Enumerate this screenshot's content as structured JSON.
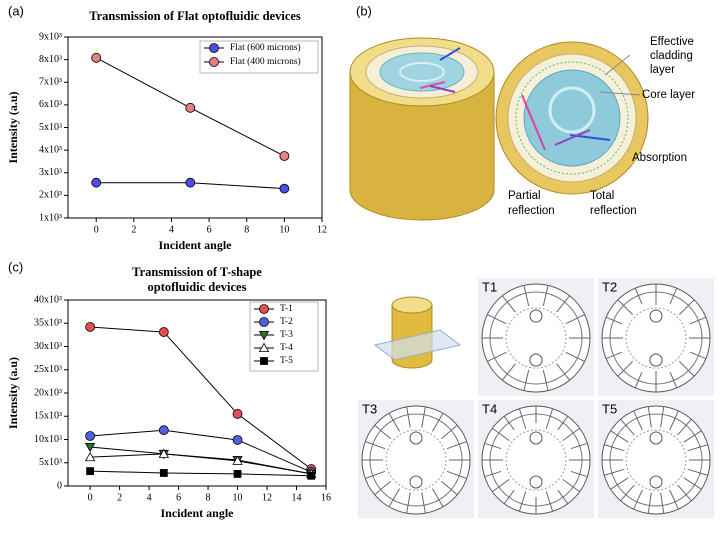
{
  "panels": {
    "a": "(a)",
    "b": "(b)",
    "c": "(c)"
  },
  "diagram": {
    "cladding": [
      "Effective",
      "cladding",
      "layer"
    ],
    "core": "Core layer",
    "absorption": "Absorption",
    "partial": [
      "Partial",
      "reflection"
    ],
    "total": [
      "Total",
      "reflection"
    ]
  },
  "devices": [
    "T1",
    "T2",
    "T3",
    "T4",
    "T5"
  ],
  "chart_data": [
    {
      "type": "line",
      "title": [
        "Transmission of Flat optofluidic devices"
      ],
      "xlabel": "Incident angle",
      "ylabel": "Intensity (a.u)",
      "x": [
        0,
        5,
        10
      ],
      "xlim": [
        -1.5,
        12
      ],
      "xticks": [
        0,
        2,
        4,
        6,
        8,
        10,
        12
      ],
      "ylim": [
        1000,
        9000
      ],
      "yticks": [
        {
          "value": 1000,
          "label": "1x10³"
        },
        {
          "value": 2000,
          "label": "2x10³"
        },
        {
          "value": 3000,
          "label": "3x10³"
        },
        {
          "value": 4000,
          "label": "4x10³"
        },
        {
          "value": 5000,
          "label": "5x10³"
        },
        {
          "value": 6000,
          "label": "6x10³"
        },
        {
          "value": 7000,
          "label": "7x10³"
        },
        {
          "value": 8000,
          "label": "8x10³"
        },
        {
          "value": 9000,
          "label": "9x10³"
        }
      ],
      "legend": "upper right",
      "line_color": "#000000",
      "series": [
        {
          "name": "Flat (600 microns)",
          "color": "#4d4de0",
          "marker": "circle",
          "values": [
            2560,
            2560,
            2300
          ]
        },
        {
          "name": "Flat (400 microns)",
          "color": "#e88080",
          "marker": "circle",
          "values": [
            8080,
            5870,
            3740
          ]
        }
      ]
    },
    {
      "type": "line",
      "title": [
        "Transmission of T-shape",
        "optofluidic devices"
      ],
      "xlabel": "Incident angle",
      "ylabel": "Intensity (a.u)",
      "x": [
        0,
        5,
        10,
        15
      ],
      "xlim": [
        -1.5,
        16
      ],
      "xticks": [
        0,
        2,
        4,
        6,
        8,
        10,
        12,
        14,
        16
      ],
      "ylim": [
        0,
        40000
      ],
      "yticks": [
        0,
        {
          "value": 5000,
          "label": "5x10³"
        },
        {
          "value": 10000,
          "label": "10x10³"
        },
        {
          "value": 15000,
          "label": "15x10³"
        },
        {
          "value": 20000,
          "label": "20x10³"
        },
        {
          "value": 25000,
          "label": "25x10³"
        },
        {
          "value": 30000,
          "label": "30x10³"
        },
        {
          "value": 35000,
          "label": "35x10³"
        },
        {
          "value": 40000,
          "label": "40x10³"
        }
      ],
      "legend": "upper right",
      "line_color": "#000000",
      "series": [
        {
          "name": "T-1",
          "color": "#e05050",
          "marker": "circle",
          "values": [
            34200,
            33100,
            15500,
            3650
          ]
        },
        {
          "name": "T-2",
          "color": "#5060e0",
          "marker": "circle",
          "values": [
            10750,
            12000,
            9900,
            3000
          ]
        },
        {
          "name": "T-3",
          "color": "#207a20",
          "marker": "triangle-down",
          "values": [
            8400,
            6900,
            5600,
            2600
          ]
        },
        {
          "name": "T-4",
          "color": "#ffffff",
          "marker": "triangle-up",
          "values": [
            6200,
            6900,
            5400,
            2600
          ]
        },
        {
          "name": "T-5",
          "color": "#000000",
          "marker": "square",
          "values": [
            3200,
            2800,
            2600,
            2200
          ]
        }
      ]
    }
  ]
}
